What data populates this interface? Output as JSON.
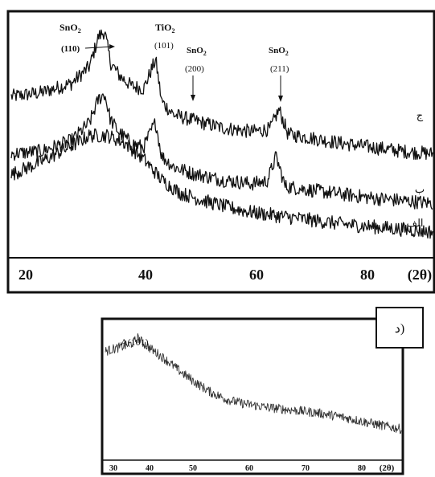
{
  "chart_data": [
    {
      "type": "line",
      "panel": "top",
      "x_ticks": [
        "20",
        "40",
        "60",
        "80"
      ],
      "x_unit": "(2θ)",
      "xlim": [
        20,
        90
      ],
      "series": [
        {
          "name": "ج",
          "points": [
            {
              "x": 20,
              "y": 122
            },
            {
              "x": 25,
              "y": 125
            },
            {
              "x": 30,
              "y": 132
            },
            {
              "x": 33,
              "y": 145
            },
            {
              "x": 34.5,
              "y": 168
            },
            {
              "x": 35.5,
              "y": 172
            },
            {
              "x": 36.5,
              "y": 148
            },
            {
              "x": 38,
              "y": 138
            },
            {
              "x": 40,
              "y": 130
            },
            {
              "x": 42,
              "y": 128
            },
            {
              "x": 43.5,
              "y": 145
            },
            {
              "x": 44,
              "y": 150
            },
            {
              "x": 45,
              "y": 118
            },
            {
              "x": 47,
              "y": 108
            },
            {
              "x": 50,
              "y": 104
            },
            {
              "x": 55,
              "y": 98
            },
            {
              "x": 60,
              "y": 95
            },
            {
              "x": 63,
              "y": 97
            },
            {
              "x": 64.5,
              "y": 112
            },
            {
              "x": 66,
              "y": 93
            },
            {
              "x": 70,
              "y": 90
            },
            {
              "x": 75,
              "y": 86
            },
            {
              "x": 80,
              "y": 83
            },
            {
              "x": 85,
              "y": 80
            },
            {
              "x": 90,
              "y": 78
            }
          ]
        },
        {
          "name": "ب",
          "points": [
            {
              "x": 20,
              "y": 78
            },
            {
              "x": 25,
              "y": 80
            },
            {
              "x": 30,
              "y": 88
            },
            {
              "x": 33,
              "y": 102
            },
            {
              "x": 34.5,
              "y": 120
            },
            {
              "x": 35.5,
              "y": 124
            },
            {
              "x": 36.5,
              "y": 104
            },
            {
              "x": 38,
              "y": 94
            },
            {
              "x": 40,
              "y": 86
            },
            {
              "x": 42,
              "y": 83
            },
            {
              "x": 43.5,
              "y": 98
            },
            {
              "x": 44,
              "y": 102
            },
            {
              "x": 45,
              "y": 76
            },
            {
              "x": 47,
              "y": 68
            },
            {
              "x": 50,
              "y": 63
            },
            {
              "x": 55,
              "y": 58
            },
            {
              "x": 60,
              "y": 55
            },
            {
              "x": 62.5,
              "y": 57
            },
            {
              "x": 64,
              "y": 76
            },
            {
              "x": 65.5,
              "y": 53
            },
            {
              "x": 70,
              "y": 50
            },
            {
              "x": 75,
              "y": 47
            },
            {
              "x": 80,
              "y": 44
            },
            {
              "x": 85,
              "y": 42
            },
            {
              "x": 90,
              "y": 40
            }
          ]
        },
        {
          "name": "الف",
          "points": [
            {
              "x": 20,
              "y": 62
            },
            {
              "x": 25,
              "y": 72
            },
            {
              "x": 30,
              "y": 84
            },
            {
              "x": 33,
              "y": 92
            },
            {
              "x": 36,
              "y": 92
            },
            {
              "x": 39,
              "y": 86
            },
            {
              "x": 42,
              "y": 74
            },
            {
              "x": 45,
              "y": 58
            },
            {
              "x": 48,
              "y": 48
            },
            {
              "x": 52,
              "y": 42
            },
            {
              "x": 56,
              "y": 37
            },
            {
              "x": 60,
              "y": 33
            },
            {
              "x": 65,
              "y": 30
            },
            {
              "x": 70,
              "y": 27
            },
            {
              "x": 75,
              "y": 24
            },
            {
              "x": 80,
              "y": 22
            },
            {
              "x": 85,
              "y": 20
            },
            {
              "x": 90,
              "y": 18
            }
          ]
        }
      ],
      "peak_annotations": [
        {
          "compound": "SnO",
          "subscript": "2",
          "hkl": "(110)"
        },
        {
          "compound": "TiO",
          "subscript": "2",
          "hkl": "(101)"
        },
        {
          "compound": "SnO",
          "subscript": "2",
          "hkl": "(200)"
        },
        {
          "compound": "SnO",
          "subscript": "2",
          "hkl": "(211)"
        }
      ]
    },
    {
      "type": "line",
      "panel": "bottom",
      "panel_label": "د)",
      "x_ticks": [
        "30",
        "40",
        "50",
        "60",
        "70",
        "80"
      ],
      "x_unit": "(2θ)",
      "xlim": [
        28,
        87
      ],
      "series": [
        {
          "name": "",
          "points": [
            {
              "x": 28,
              "y": 78
            },
            {
              "x": 30,
              "y": 80
            },
            {
              "x": 32,
              "y": 82
            },
            {
              "x": 33.5,
              "y": 84
            },
            {
              "x": 34.5,
              "y": 88
            },
            {
              "x": 35.5,
              "y": 84
            },
            {
              "x": 37,
              "y": 80
            },
            {
              "x": 40,
              "y": 72
            },
            {
              "x": 43,
              "y": 63
            },
            {
              "x": 46,
              "y": 55
            },
            {
              "x": 49,
              "y": 48
            },
            {
              "x": 52,
              "y": 43
            },
            {
              "x": 55,
              "y": 40
            },
            {
              "x": 60,
              "y": 37
            },
            {
              "x": 65,
              "y": 35
            },
            {
              "x": 70,
              "y": 33
            },
            {
              "x": 75,
              "y": 30
            },
            {
              "x": 80,
              "y": 26
            },
            {
              "x": 84,
              "y": 23
            },
            {
              "x": 87,
              "y": 21
            }
          ]
        }
      ],
      "peak_annotations": [
        {
          "label": "A(101)"
        }
      ]
    }
  ]
}
